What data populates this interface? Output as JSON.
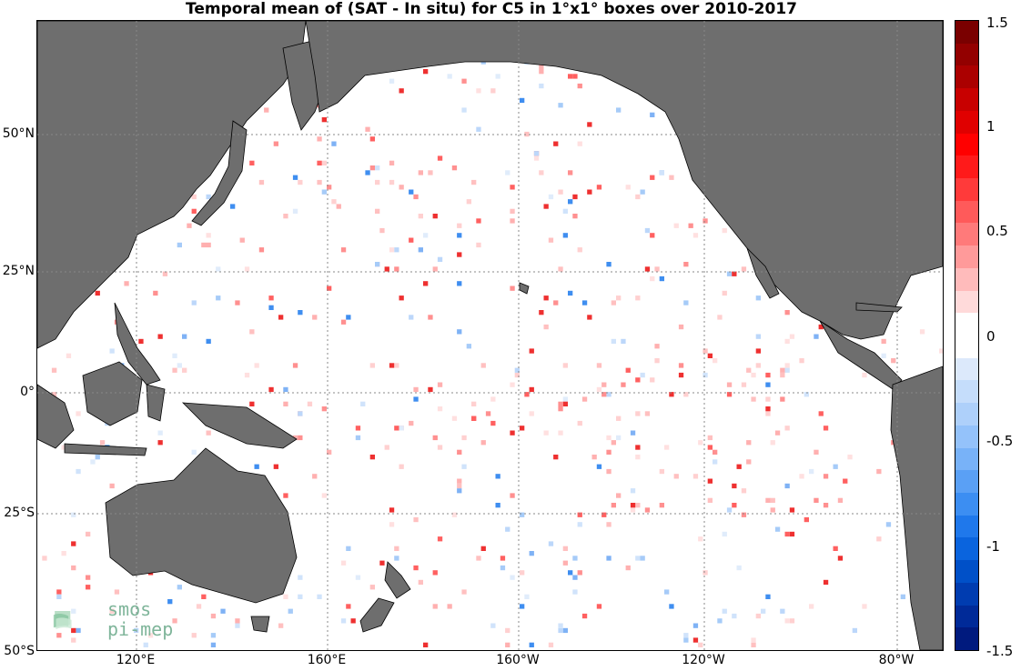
{
  "title": "Temporal mean of (SAT - In situ) for C5 in 1°x1° boxes over 2010-2017",
  "lat_labels": [
    "50°N",
    "25°N",
    "0°",
    "25°S",
    "50°S"
  ],
  "lon_labels": [
    "120°E",
    "160°E",
    "160°W",
    "120°W",
    "80°W"
  ],
  "colorbar": {
    "ticks": [
      "1.5",
      "1",
      "0.5",
      "0",
      "-0.5",
      "-1",
      "-1.5"
    ],
    "range": [
      -1.5,
      1.5
    ],
    "colors": [
      "#7a0000",
      "#930000",
      "#ab0000",
      "#c80000",
      "#e00000",
      "#ff0000",
      "#ff1a1a",
      "#ff3a3a",
      "#ff5a5a",
      "#ff7a7a",
      "#ff9a9a",
      "#ffbbbb",
      "#ffdada",
      "#ffffff",
      "#ffffff",
      "#dce9fb",
      "#c5ddfb",
      "#aed0fa",
      "#94c2fa",
      "#78b2f8",
      "#5aa0f5",
      "#3c8ef2",
      "#1f78eb",
      "#0a64de",
      "#0050c8",
      "#003cb0",
      "#002a98",
      "#001a7e"
    ]
  },
  "logo": {
    "line1": "smos",
    "line2": "pi-mep"
  },
  "colors": {
    "land": "#6e6e6e",
    "ocean": "#ffffff",
    "grid": "#888888"
  }
}
